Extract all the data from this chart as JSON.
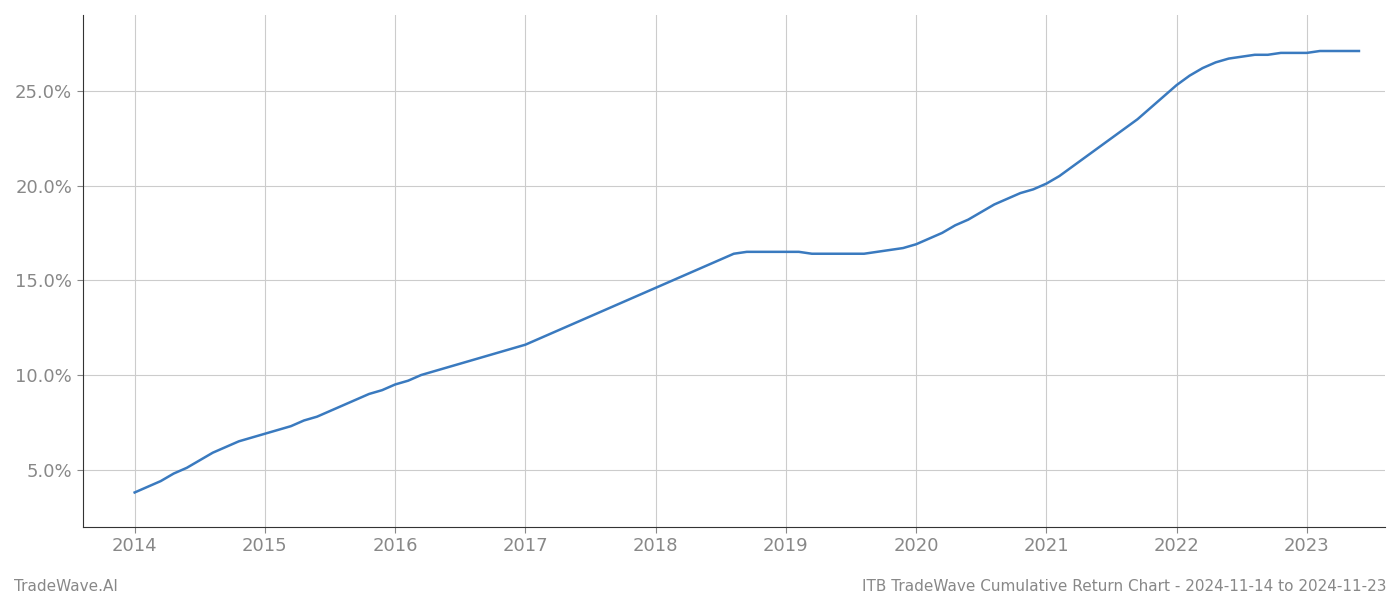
{
  "x_years": [
    2014.0,
    2014.1,
    2014.2,
    2014.3,
    2014.4,
    2014.5,
    2014.6,
    2014.7,
    2014.8,
    2014.9,
    2015.0,
    2015.1,
    2015.2,
    2015.3,
    2015.4,
    2015.5,
    2015.6,
    2015.7,
    2015.8,
    2015.9,
    2016.0,
    2016.1,
    2016.2,
    2016.3,
    2016.4,
    2016.5,
    2016.6,
    2016.7,
    2016.8,
    2016.9,
    2017.0,
    2017.1,
    2017.2,
    2017.3,
    2017.4,
    2017.5,
    2017.6,
    2017.7,
    2017.8,
    2017.9,
    2018.0,
    2018.1,
    2018.2,
    2018.3,
    2018.4,
    2018.5,
    2018.6,
    2018.7,
    2018.8,
    2018.9,
    2019.0,
    2019.1,
    2019.2,
    2019.3,
    2019.4,
    2019.5,
    2019.6,
    2019.7,
    2019.8,
    2019.9,
    2020.0,
    2020.1,
    2020.2,
    2020.3,
    2020.4,
    2020.5,
    2020.6,
    2020.7,
    2020.8,
    2020.9,
    2021.0,
    2021.1,
    2021.2,
    2021.3,
    2021.4,
    2021.5,
    2021.6,
    2021.7,
    2021.8,
    2021.9,
    2022.0,
    2022.1,
    2022.2,
    2022.3,
    2022.4,
    2022.5,
    2022.6,
    2022.7,
    2022.8,
    2022.9,
    2023.0,
    2023.1,
    2023.2,
    2023.3,
    2023.4
  ],
  "y_values": [
    3.8,
    4.1,
    4.4,
    4.8,
    5.1,
    5.5,
    5.9,
    6.2,
    6.5,
    6.7,
    6.9,
    7.1,
    7.3,
    7.6,
    7.8,
    8.1,
    8.4,
    8.7,
    9.0,
    9.2,
    9.5,
    9.7,
    10.0,
    10.2,
    10.4,
    10.6,
    10.8,
    11.0,
    11.2,
    11.4,
    11.6,
    11.9,
    12.2,
    12.5,
    12.8,
    13.1,
    13.4,
    13.7,
    14.0,
    14.3,
    14.6,
    14.9,
    15.2,
    15.5,
    15.8,
    16.1,
    16.4,
    16.5,
    16.5,
    16.5,
    16.5,
    16.5,
    16.4,
    16.4,
    16.4,
    16.4,
    16.4,
    16.5,
    16.6,
    16.7,
    16.9,
    17.2,
    17.5,
    17.9,
    18.2,
    18.6,
    19.0,
    19.3,
    19.6,
    19.8,
    20.1,
    20.5,
    21.0,
    21.5,
    22.0,
    22.5,
    23.0,
    23.5,
    24.1,
    24.7,
    25.3,
    25.8,
    26.2,
    26.5,
    26.7,
    26.8,
    26.9,
    26.9,
    27.0,
    27.0,
    27.0,
    27.1,
    27.1,
    27.1,
    27.1
  ],
  "line_color": "#3a7abf",
  "line_width": 1.8,
  "background_color": "#ffffff",
  "grid_color": "#cccccc",
  "yticks": [
    5.0,
    10.0,
    15.0,
    20.0,
    25.0
  ],
  "xticks": [
    2014,
    2015,
    2016,
    2017,
    2018,
    2019,
    2020,
    2021,
    2022,
    2023
  ],
  "ylim": [
    2.0,
    29.0
  ],
  "xlim": [
    2013.6,
    2023.6
  ],
  "tick_label_color": "#888888",
  "footer_left": "TradeWave.AI",
  "footer_right": "ITB TradeWave Cumulative Return Chart - 2024-11-14 to 2024-11-23",
  "footer_fontsize": 11,
  "tick_fontsize": 13
}
